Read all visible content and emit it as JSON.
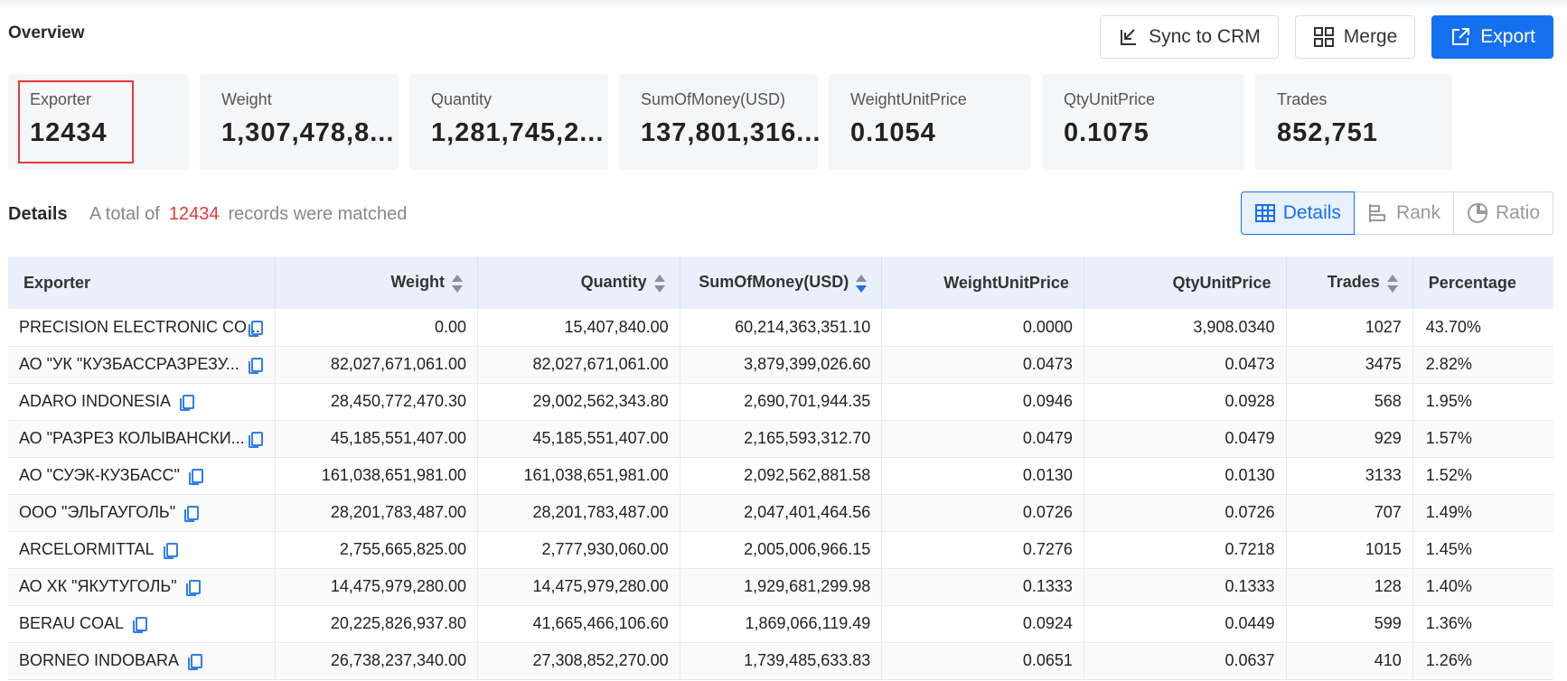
{
  "header": {
    "title": "Overview",
    "buttons": {
      "sync": "Sync to CRM",
      "merge": "Merge",
      "export": "Export"
    }
  },
  "summary_cards": [
    {
      "label": "Exporter",
      "value": "12434"
    },
    {
      "label": "Weight",
      "value": "1,307,478,8..."
    },
    {
      "label": "Quantity",
      "value": "1,281,745,2..."
    },
    {
      "label": "SumOfMoney(USD)",
      "value": "137,801,316..."
    },
    {
      "label": "WeightUnitPrice",
      "value": "0.1054"
    },
    {
      "label": "QtyUnitPrice",
      "value": "0.1075"
    },
    {
      "label": "Trades",
      "value": "852,751"
    }
  ],
  "details": {
    "title": "Details",
    "info_prefix": "A total of",
    "count": "12434",
    "info_suffix": "records were matched",
    "views": {
      "details": "Details",
      "rank": "Rank",
      "ratio": "Ratio"
    },
    "active_view": "Details"
  },
  "table": {
    "columns": {
      "exporter": "Exporter",
      "weight": "Weight",
      "quantity": "Quantity",
      "sum": "SumOfMoney(USD)",
      "wup": "WeightUnitPrice",
      "qup": "QtyUnitPrice",
      "trades": "Trades",
      "percentage": "Percentage"
    },
    "sorted_by": "SumOfMoney(USD)",
    "sort_direction": "desc",
    "rows": [
      [
        "PRECISION ELECTRONIC CO...",
        "0.00",
        "15,407,840.00",
        "60,214,363,351.10",
        "0.0000",
        "3,908.0340",
        "1027",
        "43.70%"
      ],
      [
        "АО \"УК \"КУЗБАССРАЗРЕЗУ...",
        "82,027,671,061.00",
        "82,027,671,061.00",
        "3,879,399,026.60",
        "0.0473",
        "0.0473",
        "3475",
        "2.82%"
      ],
      [
        "ADARO INDONESIA",
        "28,450,772,470.30",
        "29,002,562,343.80",
        "2,690,701,944.35",
        "0.0946",
        "0.0928",
        "568",
        "1.95%"
      ],
      [
        "АО \"РАЗРЕЗ КОЛЫВАНСКИ...",
        "45,185,551,407.00",
        "45,185,551,407.00",
        "2,165,593,312.70",
        "0.0479",
        "0.0479",
        "929",
        "1.57%"
      ],
      [
        "АО \"СУЭК-КУЗБАСС\"",
        "161,038,651,981.00",
        "161,038,651,981.00",
        "2,092,562,881.58",
        "0.0130",
        "0.0130",
        "3133",
        "1.52%"
      ],
      [
        "ООО \"ЭЛЬГАУГОЛЬ\"",
        "28,201,783,487.00",
        "28,201,783,487.00",
        "2,047,401,464.56",
        "0.0726",
        "0.0726",
        "707",
        "1.49%"
      ],
      [
        "ARCELORMITTAL",
        "2,755,665,825.00",
        "2,777,930,060.00",
        "2,005,006,966.15",
        "0.7276",
        "0.7218",
        "1015",
        "1.45%"
      ],
      [
        "АО ХК \"ЯКУТУГОЛЬ\"",
        "14,475,979,280.00",
        "14,475,979,280.00",
        "1,929,681,299.98",
        "0.1333",
        "0.1333",
        "128",
        "1.40%"
      ],
      [
        "BERAU COAL",
        "20,225,826,937.80",
        "41,665,466,106.60",
        "1,869,066,119.49",
        "0.0924",
        "0.0449",
        "599",
        "1.36%"
      ],
      [
        "BORNEO INDOBARA",
        "26,738,237,340.00",
        "27,308,852,270.00",
        "1,739,485,633.83",
        "0.0651",
        "0.0637",
        "410",
        "1.26%"
      ]
    ]
  },
  "colors": {
    "primary": "#1570ef",
    "highlight_red": "#e33a3a",
    "header_bg": "#eaf0fb",
    "card_bg": "#f5f6f8"
  }
}
